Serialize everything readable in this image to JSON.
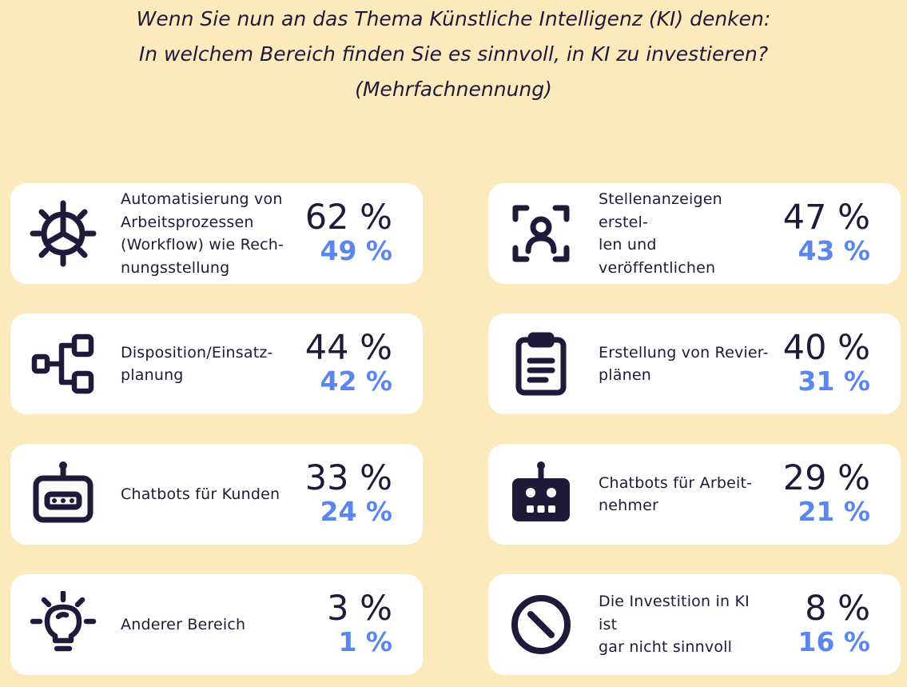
{
  "title": {
    "line1": "Wenn Sie nun an das Thema Künstliche Intelligenz (KI) denken:",
    "line2": "In welchem Bereich finden Sie es sinnvoll, in KI zu investieren?",
    "line3": "(Mehrfachnennung)"
  },
  "colors": {
    "background": "#fceabd",
    "card": "#ffffff",
    "primary_text": "#1e1a3a",
    "secondary_value": "#5b86ee"
  },
  "chart_data": {
    "type": "table",
    "title": "Wenn Sie nun an das Thema Künstliche Intelligenz (KI) denken: In welchem Bereich finden Sie es sinnvoll, in KI zu investieren? (Mehrfachnennung)",
    "items": [
      {
        "icon": "gear-icon",
        "label_lines": [
          "Automatisierung von",
          "Arbeitsprozessen",
          "(Workflow) wie Rech-",
          "nungsstellung"
        ],
        "value1": "62 %",
        "value2": "49 %"
      },
      {
        "icon": "user-scan-icon",
        "label_lines": [
          "Stellenanzeigen erstel-",
          "len und veröffentlichen"
        ],
        "value1": "47 %",
        "value2": "43 %"
      },
      {
        "icon": "hierarchy-icon",
        "label_lines": [
          "Disposition/Einsatz-",
          "planung"
        ],
        "value1": "44 %",
        "value2": "42 %"
      },
      {
        "icon": "clipboard-icon",
        "label_lines": [
          "Erstellung von Revier-",
          "plänen"
        ],
        "value1": "40 %",
        "value2": "31 %"
      },
      {
        "icon": "robot-outline-icon",
        "label_lines": [
          "Chatbots für Kunden"
        ],
        "value1": "33 %",
        "value2": "24 %"
      },
      {
        "icon": "robot-filled-icon",
        "label_lines": [
          "Chatbots für Arbeit-",
          "nehmer"
        ],
        "value1": "29 %",
        "value2": "21 %"
      },
      {
        "icon": "lightbulb-icon",
        "label_lines": [
          "Anderer Bereich"
        ],
        "value1": "3 %",
        "value2": "1 %"
      },
      {
        "icon": "prohibited-icon",
        "label_lines": [
          "Die Investition in KI ist",
          "gar nicht sinnvoll"
        ],
        "value1": "8 %",
        "value2": "16 %"
      }
    ]
  }
}
